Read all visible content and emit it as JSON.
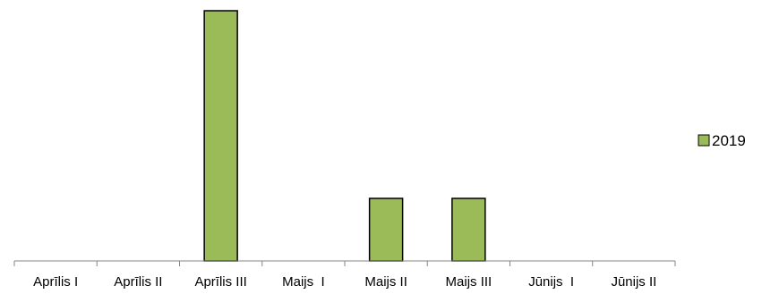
{
  "chart_data": {
    "type": "bar",
    "title": "",
    "xlabel": "",
    "ylabel": "",
    "categories": [
      "Aprīlis I",
      "Aprīlis II",
      "Aprīlis III",
      "Maijs  I",
      "Maijs II",
      "Maijs III",
      "Jūnijs  I",
      "Jūnijs II"
    ],
    "series": [
      {
        "name": "2019",
        "values": [
          0,
          0,
          4,
          0,
          1,
          1,
          0,
          0
        ],
        "color": "#9bbb59"
      }
    ],
    "ylim": [
      0,
      4
    ],
    "grid": false,
    "legend_position": "right",
    "bar_edge_color": "#000000"
  }
}
